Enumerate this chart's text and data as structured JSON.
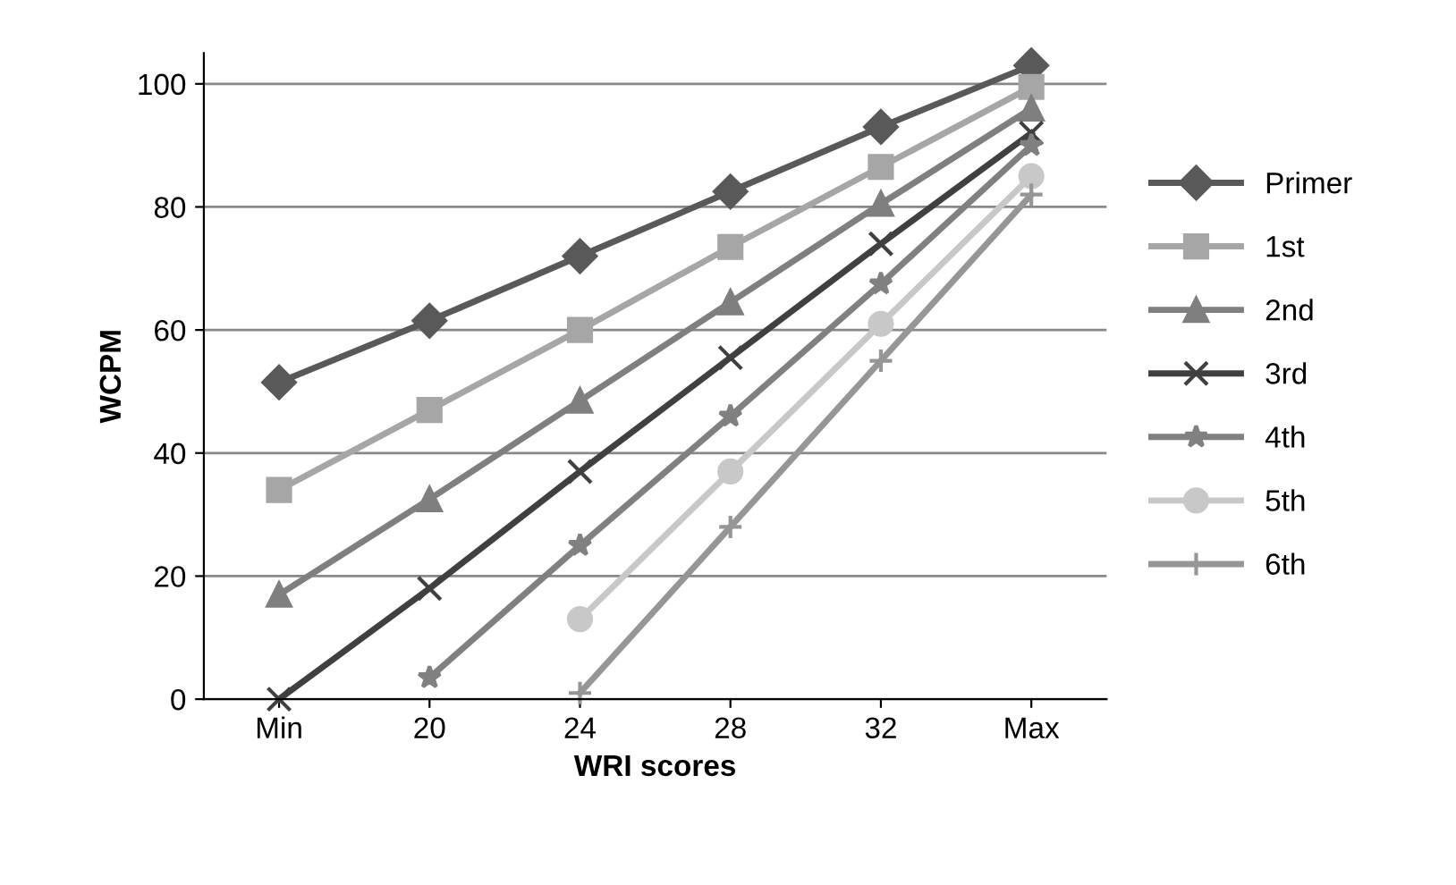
{
  "chart_data": {
    "type": "line",
    "xlabel": "WRI scores",
    "ylabel": "WCPM",
    "categories": [
      "Min",
      "20",
      "24",
      "28",
      "32",
      "Max"
    ],
    "ylim": [
      0,
      105
    ],
    "yticks": [
      0,
      20,
      40,
      60,
      80,
      100
    ],
    "grid": "y",
    "legend": "right",
    "line_style": "solid",
    "series": [
      {
        "name": "Primer",
        "color": "#595959",
        "marker": "diamond",
        "values": [
          51.5,
          61.5,
          72,
          82.5,
          93,
          103
        ]
      },
      {
        "name": "1st",
        "color": "#a6a6a6",
        "marker": "square",
        "values": [
          34,
          47,
          60,
          73.5,
          86.5,
          99.5
        ]
      },
      {
        "name": "2nd",
        "color": "#7f7f7f",
        "marker": "triangle",
        "values": [
          17,
          32.5,
          48.5,
          64.5,
          80.5,
          96
        ]
      },
      {
        "name": "3rd",
        "color": "#404040",
        "marker": "cross",
        "values": [
          0,
          18,
          37,
          55.5,
          74,
          92
        ]
      },
      {
        "name": "4th",
        "color": "#808080",
        "marker": "star",
        "values": [
          null,
          3.5,
          25,
          46,
          67.5,
          90
        ]
      },
      {
        "name": "5th",
        "color": "#c8c8c8",
        "marker": "circle",
        "values": [
          null,
          null,
          13,
          37,
          61,
          85
        ]
      },
      {
        "name": "6th",
        "color": "#969696",
        "marker": "plus",
        "values": [
          null,
          null,
          1,
          28,
          55,
          82
        ]
      }
    ]
  }
}
